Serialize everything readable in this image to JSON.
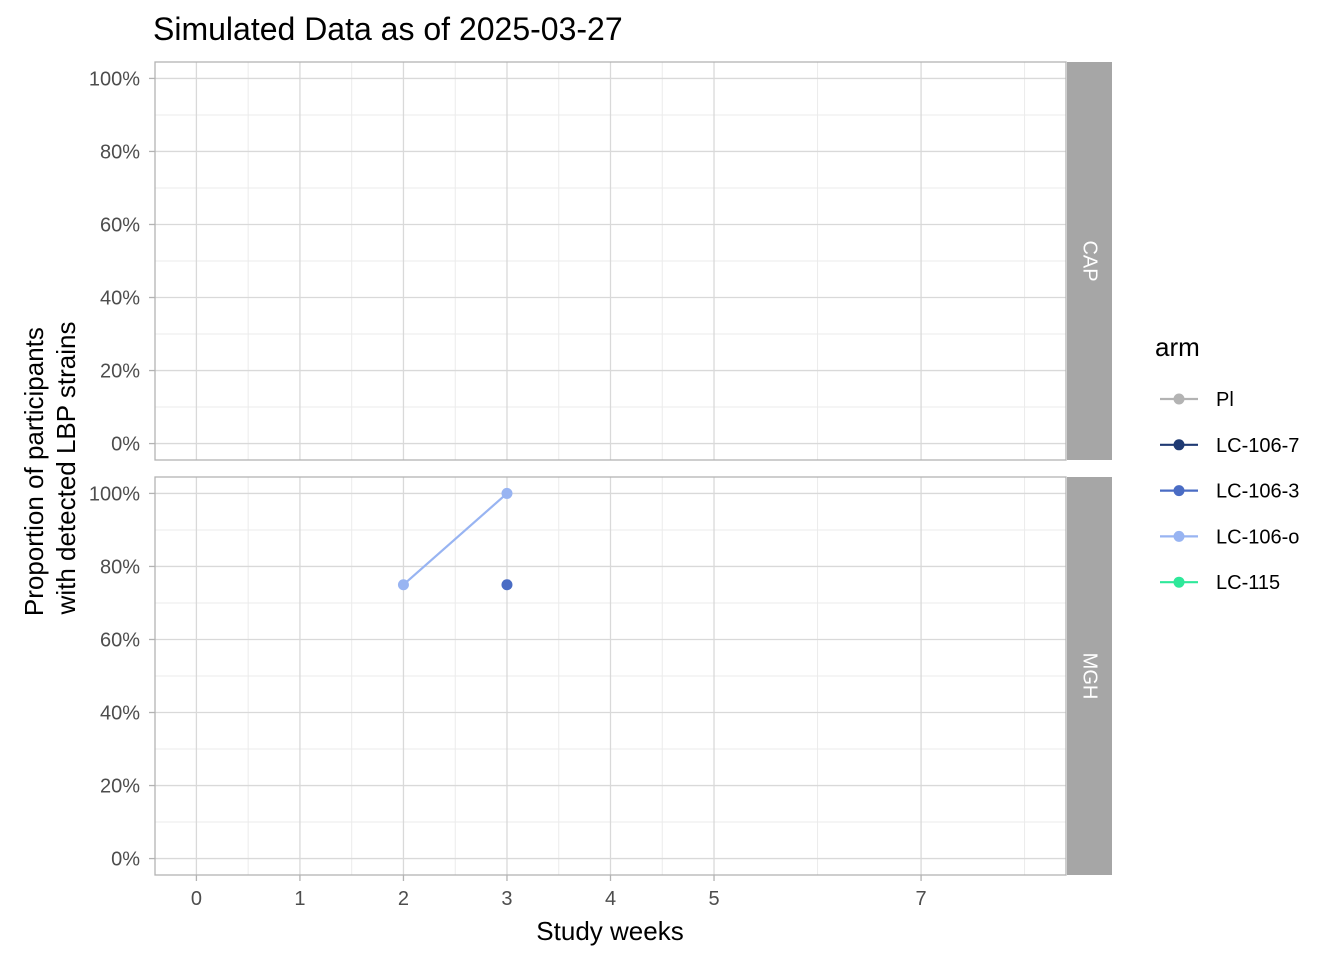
{
  "chart_data": {
    "type": "line",
    "title": "Simulated Data as of 2025-03-27",
    "xlabel": "Study weeks",
    "ylabel_lines": [
      "Proportion of participants",
      "with detected LBP strains"
    ],
    "x_ticks": [
      0,
      1,
      2,
      3,
      4,
      5,
      7
    ],
    "xlim": [
      -0.4,
      8.4
    ],
    "y_ticks": [
      0,
      20,
      40,
      60,
      80,
      100
    ],
    "y_tick_labels": [
      "0%",
      "20%",
      "40%",
      "60%",
      "80%",
      "100%"
    ],
    "ylim": [
      -4.5,
      104.5
    ],
    "grid": true,
    "legend": {
      "title": "arm",
      "placement": "right",
      "entries": [
        {
          "label": "Pl",
          "color": "#b3b3b3"
        },
        {
          "label": "LC-106-7",
          "color": "#1f3a73"
        },
        {
          "label": "LC-106-3",
          "color": "#4a6cc4"
        },
        {
          "label": "LC-106-o",
          "color": "#98b4f2"
        },
        {
          "label": "LC-115",
          "color": "#2ee89a"
        }
      ]
    },
    "panels": [
      {
        "strip": "CAP",
        "series": []
      },
      {
        "strip": "MGH",
        "series": [
          {
            "name": "LC-106-o",
            "color": "#98b4f2",
            "points": [
              {
                "x": 2,
                "y": 75
              },
              {
                "x": 3,
                "y": 100
              }
            ]
          },
          {
            "name": "LC-106-3",
            "color": "#4a6cc4",
            "points": [
              {
                "x": 3,
                "y": 75
              }
            ]
          }
        ]
      }
    ]
  }
}
